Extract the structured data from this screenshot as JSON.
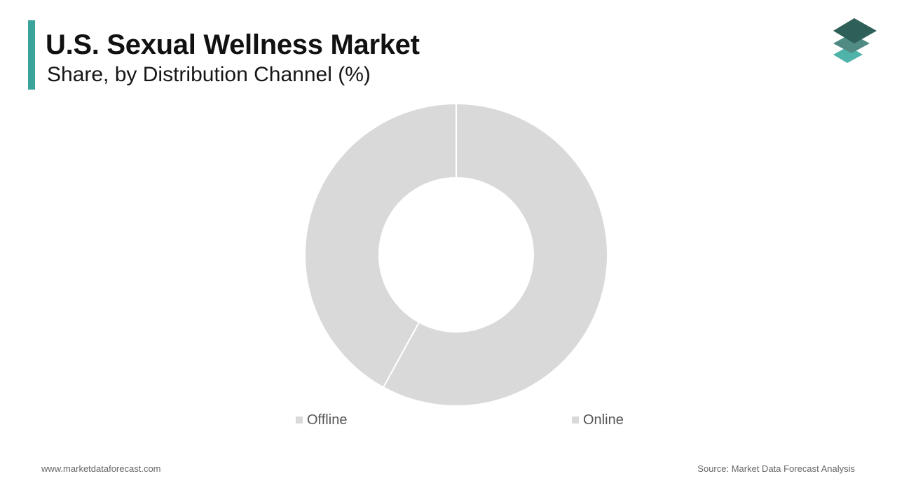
{
  "header": {
    "title": "U.S. Sexual Wellness Market",
    "subtitle": "Share, by Distribution Channel (%)"
  },
  "colors": {
    "accent": "#3aa39a",
    "slice": "#d9d9d9",
    "slice_border": "#ffffff",
    "logo_dark": "#2f5f59",
    "logo_mid": "#4f8a83",
    "logo_light": "#4fb3aa"
  },
  "logo": {
    "icon": "stacked-layers-icon"
  },
  "chart_data": {
    "type": "pie",
    "hole": true,
    "categories": [
      "Offline",
      "Online"
    ],
    "values": [
      42,
      58
    ],
    "legend_position": "bottom"
  },
  "legend": {
    "items": [
      {
        "label": "Offline"
      },
      {
        "label": "Online"
      }
    ]
  },
  "footer": {
    "website": "www.marketdataforecast.com",
    "source": "Source: Market Data Forecast Analysis"
  }
}
